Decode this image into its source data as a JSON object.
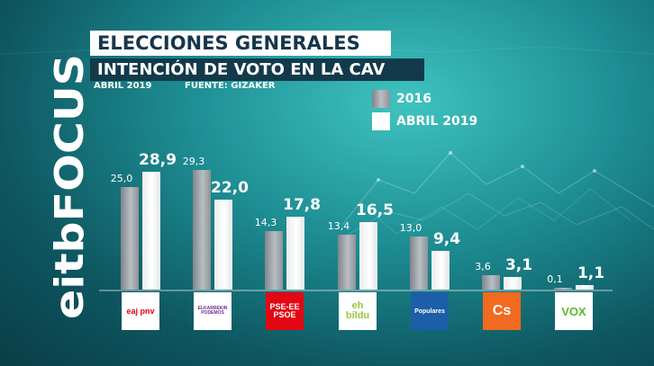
{
  "header": {
    "title": "ELECCIONES GENERALES",
    "subtitle": "INTENCIÓN DE VOTO EN LA CAV",
    "date": "ABRIL 2019",
    "source": "FUENTE: GIZAKER"
  },
  "brand": {
    "name": "eitbFOCUS"
  },
  "chart_data": {
    "type": "bar",
    "title": "INTENCIÓN DE VOTO EN LA CAV",
    "xlabel": "",
    "ylabel": "",
    "ylim": [
      0,
      30
    ],
    "grid": false,
    "legend_position": "top-right",
    "categories": [
      "EAJ-PNV",
      "Elkarrekin Podemos",
      "PSE-EE PSOE",
      "EH Bildu",
      "Populares",
      "Cs",
      "VOX"
    ],
    "series": [
      {
        "name": "2016",
        "values": [
          25.0,
          29.3,
          14.3,
          13.4,
          13.0,
          3.6,
          0.1
        ],
        "labels": [
          "25,0",
          "29,3",
          "14,3",
          "13,4",
          "13,0",
          "3,6",
          "0,1"
        ],
        "color": "#9aa0a6"
      },
      {
        "name": "ABRIL 2019",
        "values": [
          28.9,
          22.0,
          17.8,
          16.5,
          9.4,
          3.1,
          1.1
        ],
        "labels": [
          "28,9",
          "22,0",
          "17,8",
          "16,5",
          "9,4",
          "3,1",
          "1,1"
        ],
        "color": "#ffffff"
      }
    ]
  },
  "parties": [
    {
      "id": "pnv",
      "logo_text": "eaj pnv",
      "color": "#e2001a",
      "bg": "#ffffff"
    },
    {
      "id": "podemos",
      "logo_text": "ELKARREKIN PODEMOS",
      "color": "#6b2c91",
      "bg": "#ffffff"
    },
    {
      "id": "psoe",
      "logo_text": "PSE-EE PSOE",
      "color": "#ffffff",
      "bg": "#e30613"
    },
    {
      "id": "bildu",
      "logo_text": "eh bildu",
      "color": "#9bc53d",
      "bg": "#ffffff"
    },
    {
      "id": "pp",
      "logo_text": "Populares",
      "color": "#ffffff",
      "bg": "#1c5fa8"
    },
    {
      "id": "cs",
      "logo_text": "Cs",
      "color": "#ffffff",
      "bg": "#f06a1f"
    },
    {
      "id": "vox",
      "logo_text": "VOX",
      "color": "#5fb830",
      "bg": "#ffffff"
    }
  ]
}
